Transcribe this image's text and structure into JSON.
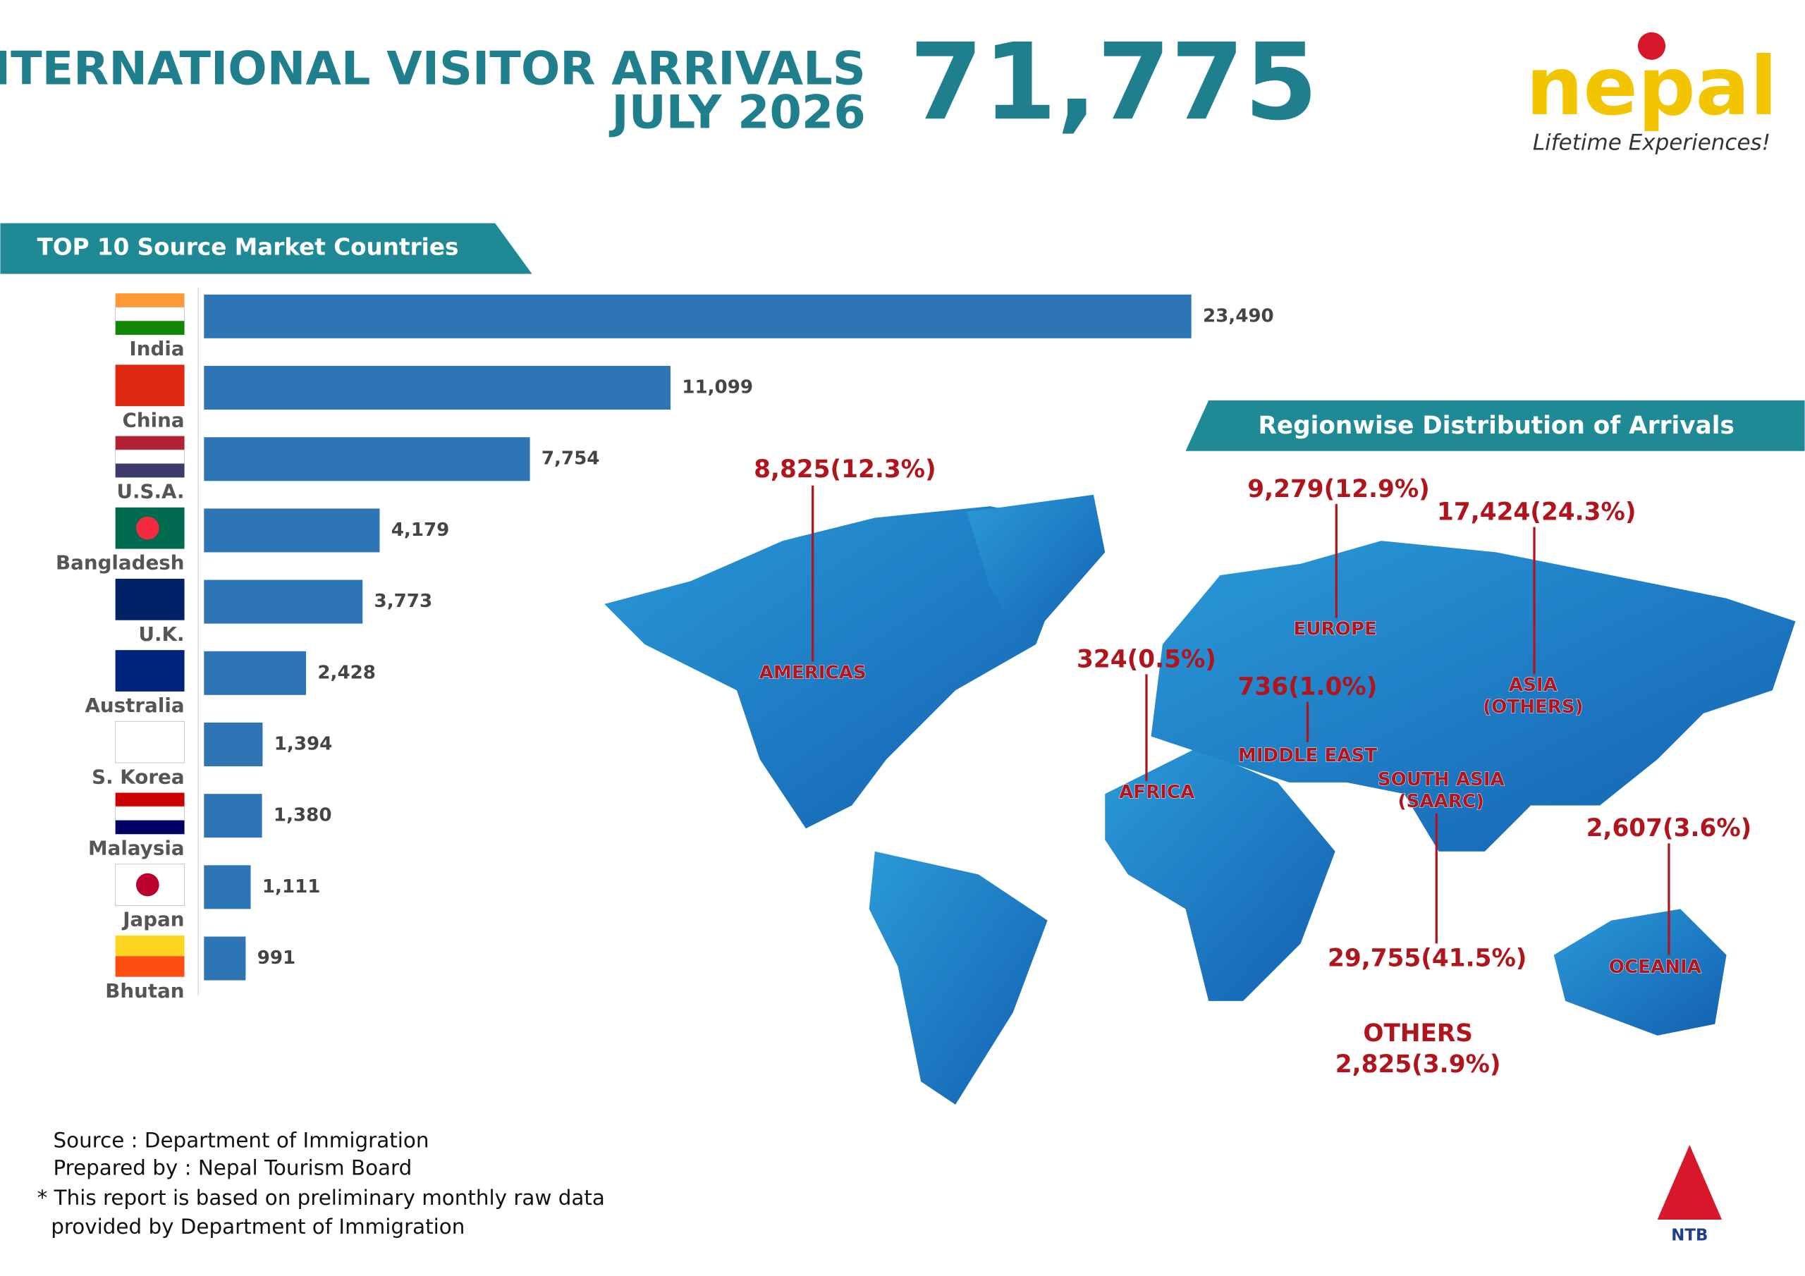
{
  "header": {
    "title_lines": [
      "INTERNATIONAL VISITOR ARRIVALS",
      "JULY 2026"
    ],
    "total": "71,775"
  },
  "logo": {
    "wordmark": "nepal",
    "tagline": "Lifetime Experiences!",
    "ntb": "NTB"
  },
  "chart_data": {
    "type": "bar",
    "title": "TOP 10 Source Market Countries",
    "categories": [
      "India",
      "China",
      "U.S.A.",
      "Bangladesh",
      "U.K.",
      "Australia",
      "S. Korea",
      "Malaysia",
      "Japan",
      "Bhutan"
    ],
    "values": [
      23490,
      11099,
      7754,
      4179,
      3773,
      2428,
      1394,
      1380,
      1111,
      991
    ],
    "value_labels": [
      "23,490",
      "11,099",
      "7,754",
      "4,179",
      "3,773",
      "2,428",
      "1,394",
      "1,380",
      "1,111",
      "991"
    ],
    "color": "#2e75b6"
  },
  "regions": {
    "title": "Regionwise Distribution of Arrivals",
    "items": [
      {
        "name_lines": [
          "AMERICAS"
        ],
        "label": "8,825(12.3%)"
      },
      {
        "name_lines": [
          "EUROPE"
        ],
        "label": "9,279(12.9%)"
      },
      {
        "name_lines": [
          "ASIA",
          "(OTHERS)"
        ],
        "label": "17,424(24.3%)"
      },
      {
        "name_lines": [
          "AFRICA"
        ],
        "label": "324(0.5%)"
      },
      {
        "name_lines": [
          "MIDDLE EAST"
        ],
        "label": "736(1.0%)"
      },
      {
        "name_lines": [
          "SOUTH ASIA",
          "(SAARC)"
        ],
        "label": "29,755(41.5%)"
      },
      {
        "name_lines": [
          "OCEANIA"
        ],
        "label": "2,607(3.6%)"
      },
      {
        "name_lines": [
          "OTHERS"
        ],
        "label": "2,825(3.9%)"
      }
    ]
  },
  "footer": {
    "lines": [
      "Source : Department of Immigration",
      "Prepared by : Nepal Tourism Board",
      "* This report is based on preliminary monthly raw data",
      "provided by Department of Immigration"
    ]
  }
}
